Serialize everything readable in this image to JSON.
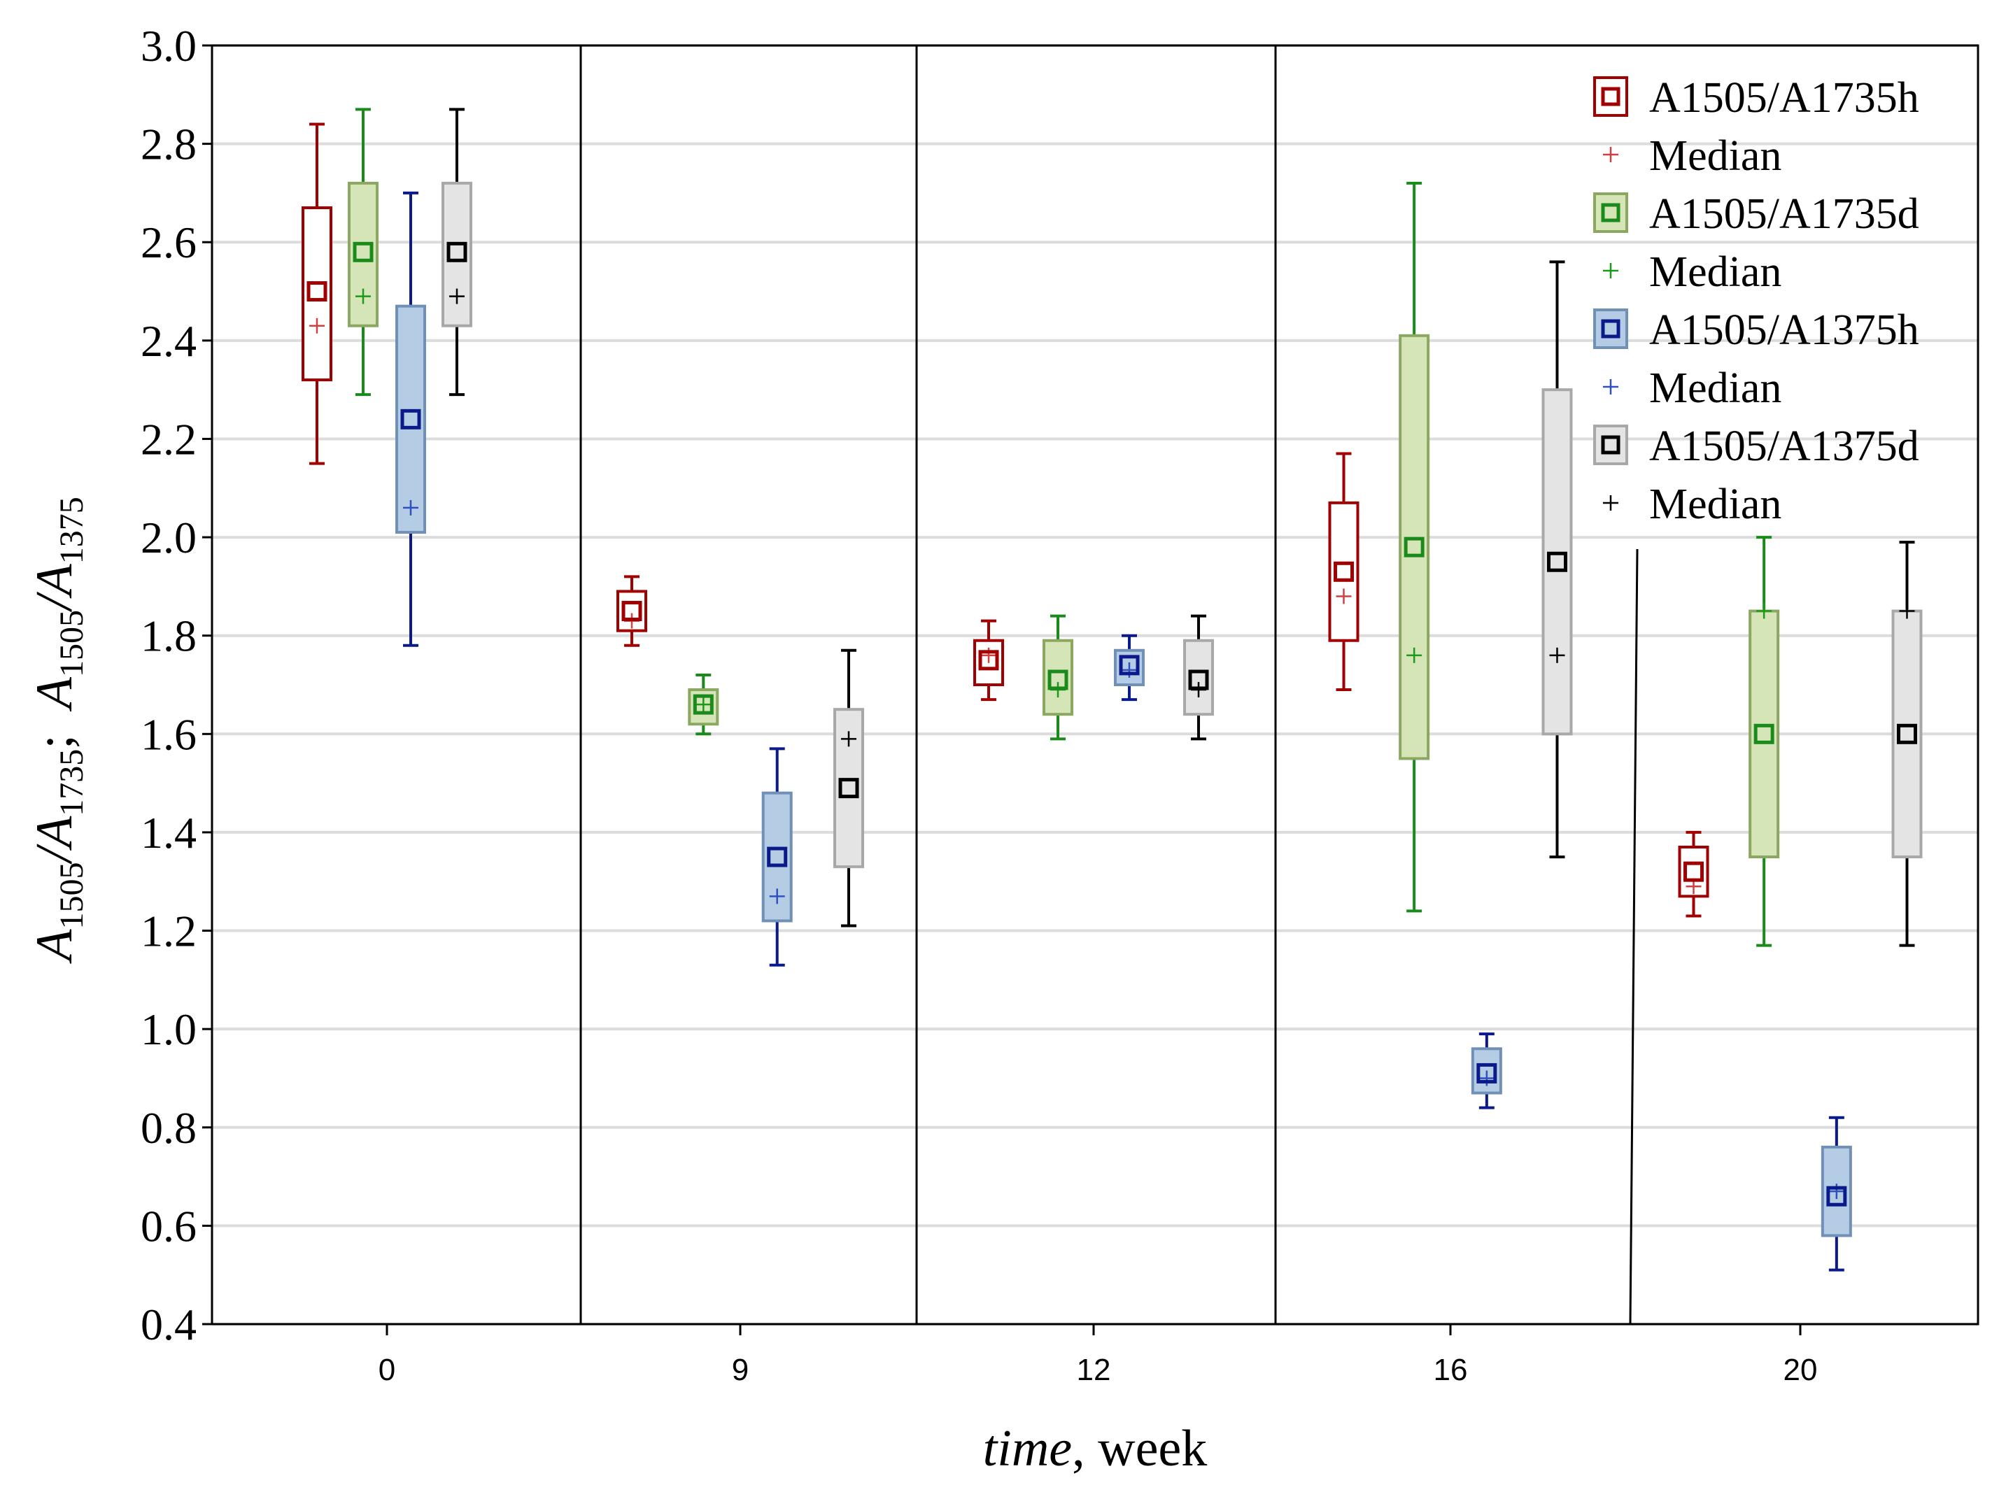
{
  "chart_data": {
    "type": "box",
    "title": "",
    "xlabel_italic": "time",
    "xlabel_rest": ", week",
    "ylabel": "A1505/A1735;  A1505/A1375",
    "ylabel_parts": {
      "a1": "A",
      "sub1": "1505",
      "slash1": "/",
      "a2": "A",
      "sub2": "1735",
      "sep": ";  ",
      "a3": "A",
      "sub3": "1505",
      "slash2": "/",
      "a4": "A",
      "sub4": "1375"
    },
    "ylim": [
      0.4,
      3.0
    ],
    "yticks": [
      "0.4",
      "0.6",
      "0.8",
      "1.0",
      "1.2",
      "1.4",
      "1.6",
      "1.8",
      "2.0",
      "2.2",
      "2.4",
      "2.6",
      "2.8",
      "3.0"
    ],
    "categories": [
      "0",
      "9",
      "12",
      "16",
      "20"
    ],
    "grid": true,
    "legend_position": "top-right",
    "series": [
      {
        "name": "A1505/A1735h",
        "median_label": "Median",
        "edge_color": "#a00000",
        "fill_color": "#ffffff",
        "whisker_color": "#a00000",
        "median_color": "#d04040",
        "boxes": [
          {
            "mean": 2.5,
            "median": 2.43,
            "q1": 2.32,
            "q3": 2.67,
            "min": 2.15,
            "max": 2.84
          },
          {
            "mean": 1.85,
            "median": 1.83,
            "q1": 1.81,
            "q3": 1.89,
            "min": 1.78,
            "max": 1.92
          },
          {
            "mean": 1.75,
            "median": 1.76,
            "q1": 1.7,
            "q3": 1.79,
            "min": 1.67,
            "max": 1.83
          },
          {
            "mean": 1.93,
            "median": 1.88,
            "q1": 1.79,
            "q3": 2.07,
            "min": 1.69,
            "max": 2.17
          },
          {
            "mean": 1.32,
            "median": 1.29,
            "q1": 1.27,
            "q3": 1.37,
            "min": 1.23,
            "max": 1.4
          }
        ]
      },
      {
        "name": "A1505/A1735d",
        "median_label": "Median",
        "edge_color": "#8aa860",
        "fill_color": "#d6e5b8",
        "whisker_color": "#1a8a1a",
        "median_color": "#1a9a1a",
        "boxes": [
          {
            "mean": 2.58,
            "median": 2.49,
            "q1": 2.43,
            "q3": 2.72,
            "min": 2.29,
            "max": 2.87
          },
          {
            "mean": 1.66,
            "median": 1.66,
            "q1": 1.62,
            "q3": 1.69,
            "min": 1.6,
            "max": 1.72
          },
          {
            "mean": 1.71,
            "median": 1.69,
            "q1": 1.64,
            "q3": 1.79,
            "min": 1.59,
            "max": 1.84
          },
          {
            "mean": 1.98,
            "median": 1.76,
            "q1": 1.55,
            "q3": 2.41,
            "min": 1.24,
            "max": 2.72
          },
          {
            "mean": 1.6,
            "median": 1.85,
            "q1": 1.35,
            "q3": 1.85,
            "min": 1.17,
            "max": 2.0
          }
        ]
      },
      {
        "name": "A1505/A1375h",
        "median_label": "Median",
        "edge_color": "#7090b8",
        "fill_color": "#b4cde4",
        "whisker_color": "#0a1a8a",
        "median_color": "#3050c0",
        "boxes": [
          {
            "mean": 2.24,
            "median": 2.06,
            "q1": 2.01,
            "q3": 2.47,
            "min": 1.78,
            "max": 2.7
          },
          {
            "mean": 1.35,
            "median": 1.27,
            "q1": 1.22,
            "q3": 1.48,
            "min": 1.13,
            "max": 1.57
          },
          {
            "mean": 1.74,
            "median": 1.73,
            "q1": 1.7,
            "q3": 1.77,
            "min": 1.67,
            "max": 1.8
          },
          {
            "mean": 0.91,
            "median": 0.9,
            "q1": 0.87,
            "q3": 0.96,
            "min": 0.84,
            "max": 0.99
          },
          {
            "mean": 0.66,
            "median": 0.67,
            "q1": 0.58,
            "q3": 0.76,
            "min": 0.51,
            "max": 0.82
          }
        ]
      },
      {
        "name": "A1505/A1375d",
        "median_label": "Median",
        "edge_color": "#a8a8a8",
        "fill_color": "#e4e4e4",
        "whisker_color": "#000000",
        "median_color": "#000000",
        "boxes": [
          {
            "mean": 2.58,
            "median": 2.49,
            "q1": 2.43,
            "q3": 2.72,
            "min": 2.29,
            "max": 2.87
          },
          {
            "mean": 1.49,
            "median": 1.59,
            "q1": 1.33,
            "q3": 1.65,
            "min": 1.21,
            "max": 1.77
          },
          {
            "mean": 1.71,
            "median": 1.69,
            "q1": 1.64,
            "q3": 1.79,
            "min": 1.59,
            "max": 1.84
          },
          {
            "mean": 1.95,
            "median": 1.76,
            "q1": 1.6,
            "q3": 2.3,
            "min": 1.35,
            "max": 2.56
          },
          {
            "mean": 1.6,
            "median": 1.85,
            "q1": 1.35,
            "q3": 1.85,
            "min": 1.17,
            "max": 1.99
          }
        ]
      }
    ]
  }
}
